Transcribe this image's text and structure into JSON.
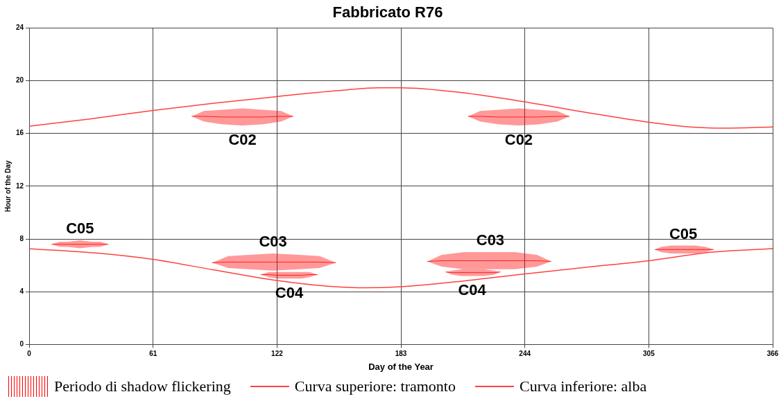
{
  "chart_data": {
    "type": "line",
    "title": "Fabbricato R76",
    "xlabel": "Day of the Year",
    "ylabel": "Hour of the Day",
    "xlim": [
      0,
      366
    ],
    "xticks": [
      0,
      61,
      122,
      183,
      244,
      305,
      366
    ],
    "ylim": [
      0,
      24
    ],
    "yticks": [
      0,
      4,
      8,
      12,
      16,
      20,
      24
    ],
    "grid": true,
    "legend": "bottom",
    "series": [
      {
        "name": "Periodo di shadow flickering",
        "color": "#ff0000",
        "x": [
          11,
          15,
          19,
          25,
          31,
          35,
          39,
          60,
          80,
          86,
          95,
          105,
          115,
          124,
          130,
          170,
          216,
          222,
          231,
          241,
          251,
          260,
          266,
          290,
          308,
          311,
          316,
          322,
          328,
          333,
          337
        ],
        "values": [
          7.6,
          7.6,
          7.6,
          7.6,
          7.6,
          7.6,
          7.6,
          null,
          17.3,
          17.3,
          17.25,
          17.25,
          17.25,
          17.3,
          17.3,
          null,
          17.3,
          17.3,
          17.25,
          17.25,
          17.25,
          17.3,
          17.3,
          null,
          7.2,
          7.2,
          7.2,
          7.2,
          7.2,
          7.2,
          7.2
        ],
        "lower": [
          7.6,
          7.4,
          7.4,
          7.3,
          7.4,
          7.4,
          7.6,
          null,
          17.3,
          16.9,
          16.7,
          16.6,
          16.7,
          16.9,
          17.3,
          null,
          17.3,
          16.9,
          16.7,
          16.6,
          16.7,
          16.9,
          17.3,
          null,
          7.2,
          7.0,
          6.9,
          6.9,
          6.9,
          7.0,
          7.2
        ],
        "upper": [
          7.6,
          7.8,
          7.8,
          7.9,
          7.8,
          7.8,
          7.6,
          null,
          17.3,
          17.7,
          17.8,
          17.9,
          17.8,
          17.7,
          17.3,
          null,
          17.3,
          17.7,
          17.8,
          17.9,
          17.8,
          17.7,
          17.3,
          null,
          7.2,
          7.4,
          7.5,
          7.5,
          7.5,
          7.4,
          7.2
        ]
      },
      {
        "color": "#ff0000",
        "x": [
          90,
          98,
          108,
          120,
          133,
          143,
          151,
          175,
          196,
          203,
          214,
          227,
          239,
          250,
          257
        ],
        "values": [
          6.2,
          6.25,
          6.25,
          6.25,
          6.25,
          6.25,
          6.2,
          null,
          6.3,
          6.35,
          6.35,
          6.35,
          6.35,
          6.35,
          6.3
        ],
        "lower": [
          6.2,
          5.8,
          5.7,
          5.6,
          5.7,
          5.8,
          6.2,
          null,
          6.3,
          5.9,
          5.7,
          5.7,
          5.7,
          5.9,
          6.3
        ],
        "upper": [
          6.2,
          6.7,
          6.8,
          6.9,
          6.8,
          6.7,
          6.2,
          null,
          6.3,
          6.8,
          7.0,
          7.0,
          7.0,
          6.8,
          6.3
        ]
      },
      {
        "color": "#ff0000",
        "x": [
          114,
          118,
          122,
          128,
          134,
          138,
          142,
          175,
          205,
          208,
          213,
          218,
          224,
          229,
          232
        ],
        "values": [
          5.3,
          5.3,
          5.25,
          5.25,
          5.25,
          5.3,
          5.3,
          null,
          5.5,
          5.45,
          5.45,
          5.45,
          5.45,
          5.45,
          5.5
        ],
        "lower": [
          5.3,
          5.1,
          5.0,
          5.0,
          5.0,
          5.1,
          5.3,
          null,
          5.5,
          5.3,
          5.2,
          5.2,
          5.2,
          5.3,
          5.5
        ],
        "upper": [
          5.3,
          5.5,
          5.5,
          5.5,
          5.5,
          5.5,
          5.3,
          null,
          5.5,
          5.6,
          5.7,
          5.7,
          5.7,
          5.6,
          5.5
        ]
      },
      {
        "name": "Curva superiore: tramonto",
        "color": "#ff4040",
        "x": [
          0,
          30,
          61,
          91,
          122,
          152,
          172,
          183,
          213,
          244,
          274,
          305,
          325,
          343,
          366
        ],
        "values": [
          16.55,
          17.1,
          17.75,
          18.3,
          18.8,
          19.25,
          19.47,
          19.47,
          19.1,
          18.4,
          17.6,
          16.85,
          16.5,
          16.4,
          16.5
        ]
      },
      {
        "name": "Curva inferiore: alba",
        "color": "#ff4040",
        "x": [
          0,
          32,
          61,
          91,
          122,
          147,
          165,
          183,
          213,
          244,
          274,
          305,
          336,
          366
        ],
        "values": [
          7.26,
          6.95,
          6.45,
          5.65,
          4.85,
          4.42,
          4.3,
          4.38,
          4.8,
          5.35,
          5.85,
          6.35,
          7.0,
          7.27
        ]
      }
    ],
    "annotations": [
      {
        "text": "C02",
        "x": 105,
        "y": 17.25
      },
      {
        "text": "C02",
        "x": 241,
        "y": 17.25
      },
      {
        "text": "C05",
        "x": 25,
        "y": 7.6
      },
      {
        "text": "C03",
        "x": 120,
        "y": 6.25
      },
      {
        "text": "C04",
        "x": 128,
        "y": 5.25
      },
      {
        "text": "C03",
        "x": 227,
        "y": 6.35
      },
      {
        "text": "C04",
        "x": 218,
        "y": 5.45
      },
      {
        "text": "C05",
        "x": 322,
        "y": 7.2
      }
    ]
  }
}
